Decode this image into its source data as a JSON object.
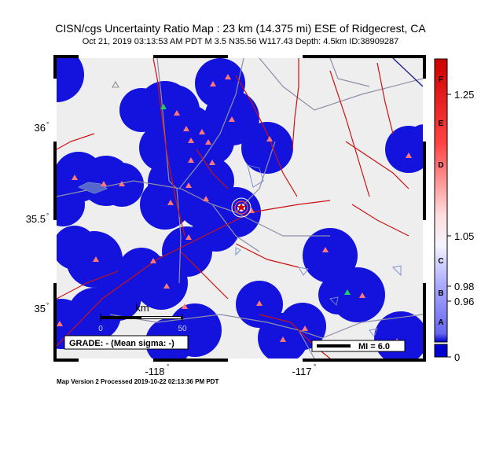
{
  "header": {
    "title": "CISN/cgs Uncertainty Ratio Map : 23 km (14.375 mi) ESE of Ridgecrest, CA",
    "subtitle": "Oct 21, 2019 03:13:53 AM PDT   M 3.5   N35.56 W117.43   Depth: 4.5km   ID:38909287"
  },
  "axes": {
    "lat_ticks": [
      {
        "label": "36",
        "value": 36.0
      },
      {
        "label": "35.5",
        "value": 35.5
      },
      {
        "label": "35",
        "value": 35.0
      }
    ],
    "lon_ticks": [
      {
        "label": "-118",
        "value": -118.0
      },
      {
        "label": "-117",
        "value": -117.0
      }
    ],
    "degree_mark": "°"
  },
  "scale_bar": {
    "label": "km",
    "ticks": [
      "0",
      "50"
    ]
  },
  "grade_box": {
    "text": "GRADE: - (Mean sigma: -)"
  },
  "mi_legend": {
    "text": "MI = 6.0"
  },
  "colorbar": {
    "letters": [
      "F",
      "E",
      "D",
      "C",
      "B",
      "A"
    ],
    "values": [
      "1.25",
      "1.05",
      "0.98",
      "0.96",
      "0"
    ]
  },
  "footer": {
    "text": "Map Version 2 Processed 2019-10-22 02:13:36 PM PDT"
  },
  "colors": {
    "land": "#eeeeee",
    "blue_zone": "#1111dd",
    "fault": "#cc1111",
    "road": "#9999aa",
    "station": "#ff7777",
    "colorbar_top": "#cc0000",
    "colorbar_bottom": "#0000cc"
  }
}
